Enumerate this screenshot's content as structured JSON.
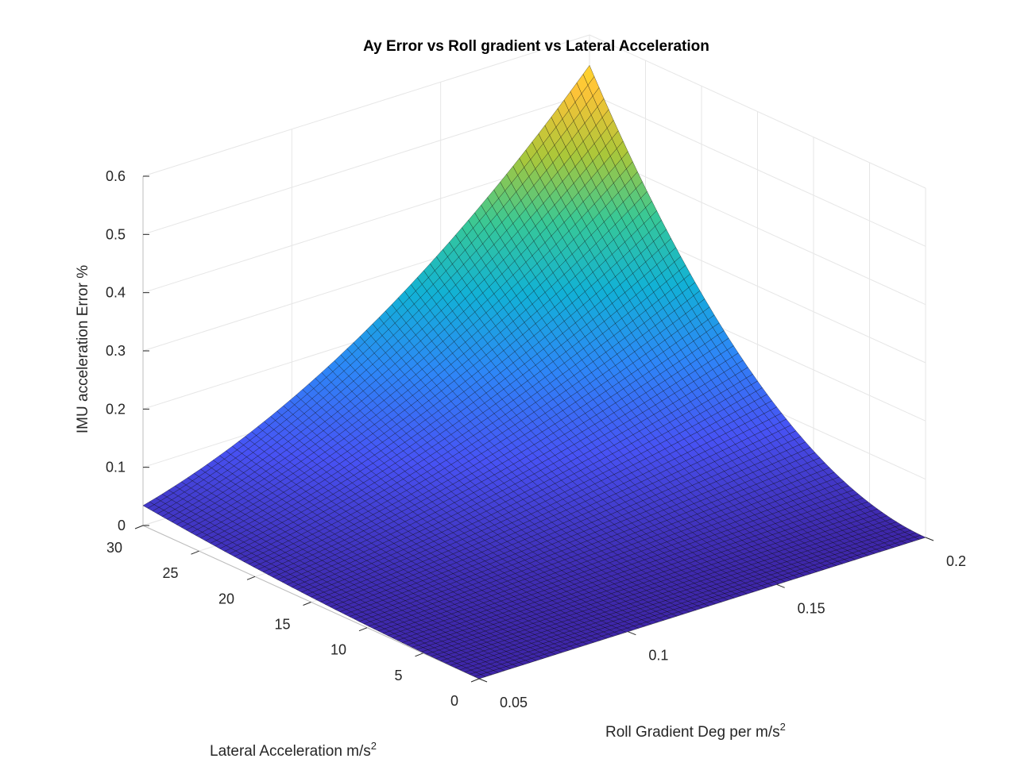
{
  "chart_data": {
    "type": "surface",
    "title": "Ay Error vs Roll gradient vs Lateral Acceleration",
    "xlabel": {
      "main": "Roll Gradient Deg per m/s",
      "sup": "2"
    },
    "ylabel": {
      "main": "Lateral Acceleration m/s",
      "sup": "2"
    },
    "zlabel": "IMU acceleration Error %",
    "xlim": [
      0.05,
      0.2
    ],
    "ylim": [
      0,
      30
    ],
    "zlim": [
      0,
      0.6
    ],
    "x_ticks": [
      0.05,
      0.1,
      0.15,
      0.2
    ],
    "x_tick_labels": [
      "0.05",
      "0.1",
      "0.15",
      "0.2"
    ],
    "y_ticks": [
      0,
      5,
      10,
      15,
      20,
      25,
      30
    ],
    "y_tick_labels": [
      "0",
      "5",
      "10",
      "15",
      "20",
      "25",
      "30"
    ],
    "z_ticks": [
      0,
      0.1,
      0.2,
      0.3,
      0.4,
      0.5,
      0.6
    ],
    "z_tick_labels": [
      "0",
      "0.1",
      "0.2",
      "0.3",
      "0.4",
      "0.5",
      "0.6"
    ],
    "grid": true,
    "colormap": "parula",
    "function": "z = 100*(1 - cos(x*y*pi/180))",
    "corner_values": [
      {
        "x": 0.05,
        "y": 0,
        "z": 0
      },
      {
        "x": 0.2,
        "y": 0,
        "z": 0
      },
      {
        "x": 0.05,
        "y": 30,
        "z": 0.034
      },
      {
        "x": 0.2,
        "y": 30,
        "z": 0.548
      }
    ],
    "mesh_resolution": 70
  }
}
